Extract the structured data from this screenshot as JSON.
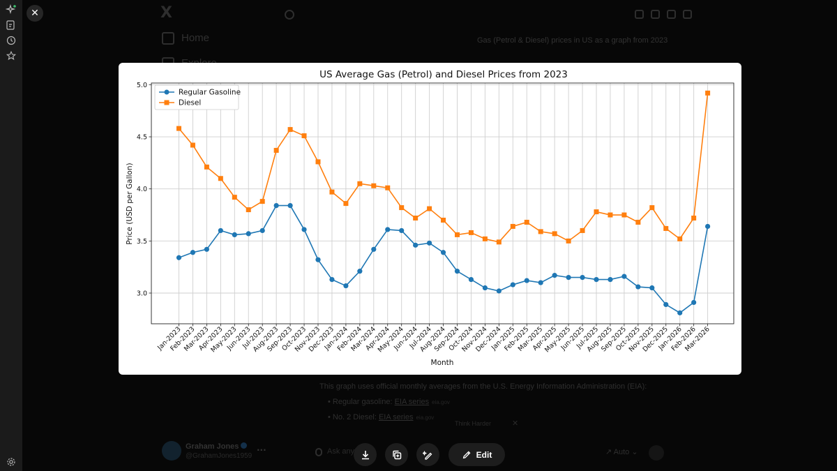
{
  "app": {
    "logo": "X",
    "nav": [
      {
        "label": "Home",
        "icon": "home-icon"
      },
      {
        "label": "Explore",
        "icon": "search-icon"
      }
    ],
    "query": "Gas (Petrol & Diesel) prices in US as a graph from 2023",
    "response_intro": "This graph uses official monthly averages from the U.S. Energy Information Administration (EIA):",
    "sources": [
      {
        "prefix": "Regular gasoline: ",
        "link": "EIA series",
        "tag": "eia.gov"
      },
      {
        "prefix": "No. 2 Diesel: ",
        "link": "EIA series",
        "tag": "eia.gov"
      }
    ],
    "think_harder": "Think Harder",
    "user": {
      "name": "Graham Jones",
      "handle": "@GrahamJones1959"
    },
    "ask_placeholder": "Ask anything",
    "mode": "Auto"
  },
  "viewer": {
    "close_icon": "close-icon",
    "actions": [
      {
        "name": "download-button",
        "icon": "download-icon"
      },
      {
        "name": "copy-button",
        "icon": "copy-icon"
      },
      {
        "name": "generate-button",
        "icon": "sparkle-pen-icon"
      }
    ],
    "edit_label": "Edit"
  },
  "colors": {
    "gasoline": "#1f77b4",
    "diesel": "#ff7f0e"
  },
  "chart_data": {
    "type": "line",
    "title": "US Average Gas (Petrol) and Diesel Prices from 2023",
    "xlabel": "Month",
    "ylabel": "Price (USD per Gallon)",
    "ylim": [
      2.7,
      5.0
    ],
    "yticks": [
      "3.0",
      "3.5",
      "4.0",
      "4.5",
      "5.0"
    ],
    "grid": true,
    "legend": "top-left",
    "x": [
      "Jan-2023",
      "Feb-2023",
      "Mar-2023",
      "Apr-2023",
      "May-2023",
      "Jun-2023",
      "Jul-2023",
      "Aug-2023",
      "Sep-2023",
      "Oct-2023",
      "Nov-2023",
      "Dec-2023",
      "Jan-2024",
      "Feb-2024",
      "Mar-2024",
      "Apr-2024",
      "May-2024",
      "Jun-2024",
      "Jul-2024",
      "Aug-2024",
      "Sep-2024",
      "Oct-2024",
      "Nov-2024",
      "Dec-2024",
      "Jan-2025",
      "Feb-2025",
      "Mar-2025",
      "Apr-2025",
      "May-2025",
      "Jun-2025",
      "Jul-2025",
      "Aug-2025",
      "Sep-2025",
      "Oct-2025",
      "Nov-2025",
      "Dec-2025",
      "Jan-2026",
      "Feb-2026",
      "Mar-2026"
    ],
    "series": [
      {
        "name": "Regular Gasoline",
        "marker": "circle",
        "values": [
          3.34,
          3.39,
          3.42,
          3.6,
          3.56,
          3.57,
          3.6,
          3.84,
          3.84,
          3.61,
          3.32,
          3.13,
          3.07,
          3.21,
          3.42,
          3.61,
          3.6,
          3.46,
          3.48,
          3.39,
          3.21,
          3.13,
          3.05,
          3.02,
          3.08,
          3.12,
          3.1,
          3.17,
          3.15,
          3.15,
          3.13,
          3.13,
          3.16,
          3.06,
          3.05,
          2.89,
          2.81,
          2.91,
          3.64
        ]
      },
      {
        "name": "Diesel",
        "marker": "square",
        "values": [
          4.58,
          4.42,
          4.21,
          4.1,
          3.92,
          3.8,
          3.88,
          4.37,
          4.57,
          4.51,
          4.26,
          3.97,
          3.86,
          4.05,
          4.03,
          4.01,
          3.82,
          3.72,
          3.81,
          3.7,
          3.56,
          3.58,
          3.52,
          3.49,
          3.64,
          3.68,
          3.59,
          3.57,
          3.5,
          3.6,
          3.78,
          3.75,
          3.75,
          3.68,
          3.82,
          3.62,
          3.52,
          3.72,
          4.92
        ]
      }
    ]
  }
}
